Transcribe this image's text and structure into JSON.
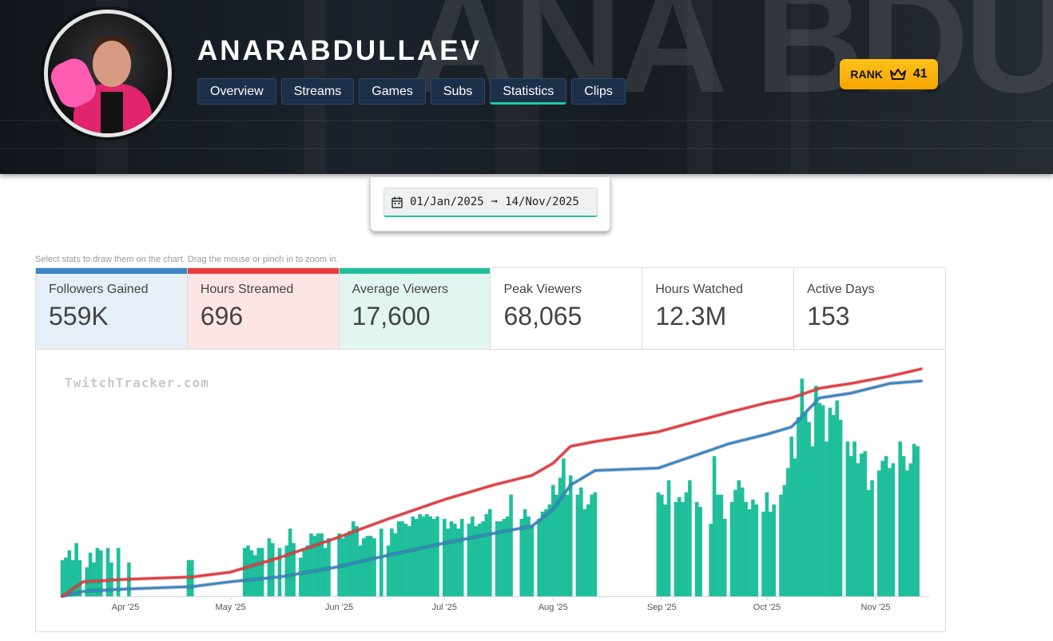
{
  "header": {
    "streamer_name": "ANARABDULLAEV",
    "tabs": [
      {
        "label": "Overview",
        "active": false
      },
      {
        "label": "Streams",
        "active": false
      },
      {
        "label": "Games",
        "active": false
      },
      {
        "label": "Subs",
        "active": false
      },
      {
        "label": "Statistics",
        "active": true
      },
      {
        "label": "Clips",
        "active": false
      }
    ],
    "rank": {
      "label": "RANK",
      "icon": "crown-icon",
      "value": "41"
    },
    "background_text": "ANA BDU"
  },
  "date_range": {
    "icon": "calendar-icon",
    "start": "01/Jan/2025",
    "arrow": "➞",
    "end": "14/Nov/2025"
  },
  "hint": "Select stats to draw them on the chart. Drag the mouse or pinch in to zoom in.",
  "stats": [
    {
      "label": "Followers Gained",
      "value": "559K",
      "selected": true,
      "color": "#3b86c6",
      "bg": "#e6eff7"
    },
    {
      "label": "Hours Streamed",
      "value": "696",
      "selected": true,
      "color": "#ea3b3f",
      "bg": "#fde5e5"
    },
    {
      "label": "Average Viewers",
      "value": "17,600",
      "selected": true,
      "color": "#1fbf9c",
      "bg": "#e1f6f1"
    },
    {
      "label": "Peak Viewers",
      "value": "68,065",
      "selected": false,
      "color": "",
      "bg": "#ffffff"
    },
    {
      "label": "Hours Watched",
      "value": "12.3M",
      "selected": false,
      "color": "",
      "bg": "#ffffff"
    },
    {
      "label": "Active Days",
      "value": "153",
      "selected": false,
      "color": "",
      "bg": "#ffffff"
    }
  ],
  "watermark": "TwitchTracker.com",
  "chart_data": {
    "type": "bar",
    "x_axis_type": "date",
    "x_range": [
      "2025-03-14",
      "2025-11-14"
    ],
    "x_ticks": [
      {
        "label": "Apr '25",
        "date": "2025-04-01"
      },
      {
        "label": "May '25",
        "date": "2025-05-01"
      },
      {
        "label": "Jun '25",
        "date": "2025-06-01"
      },
      {
        "label": "Jul '25",
        "date": "2025-07-01"
      },
      {
        "label": "Aug '25",
        "date": "2025-08-01"
      },
      {
        "label": "Sep '25",
        "date": "2025-09-01"
      },
      {
        "label": "Oct '25",
        "date": "2025-10-01"
      },
      {
        "label": "Nov '25",
        "date": "2025-11-01"
      }
    ],
    "y_axis": "hidden",
    "grid": false,
    "legend": "none",
    "series": [
      {
        "type": "bar",
        "color": "#1fbf9c",
        "values_note": "relative height 0-1",
        "points": [
          [
            "2025-03-14",
            0.15
          ],
          [
            "2025-03-15",
            0.16
          ],
          [
            "2025-03-16",
            0.19
          ],
          [
            "2025-03-17",
            0.15
          ],
          [
            "2025-03-18",
            0.22
          ],
          [
            "2025-03-19",
            0.15
          ],
          [
            "2025-03-21",
            0.12
          ],
          [
            "2025-03-22",
            0.18
          ],
          [
            "2025-03-23",
            0.14
          ],
          [
            "2025-03-24",
            0.2
          ],
          [
            "2025-03-25",
            0.19
          ],
          [
            "2025-03-27",
            0.2
          ],
          [
            "2025-03-28",
            0.14
          ],
          [
            "2025-03-30",
            0.2
          ],
          [
            "2025-04-02",
            0.14
          ],
          [
            "2025-04-19",
            0.15
          ],
          [
            "2025-04-20",
            0.15
          ],
          [
            "2025-05-05",
            0.2
          ],
          [
            "2025-05-06",
            0.21
          ],
          [
            "2025-05-07",
            0.19
          ],
          [
            "2025-05-08",
            0.17
          ],
          [
            "2025-05-09",
            0.2
          ],
          [
            "2025-05-10",
            0.2
          ],
          [
            "2025-05-12",
            0.24
          ],
          [
            "2025-05-13",
            0.22
          ],
          [
            "2025-05-15",
            0.2
          ],
          [
            "2025-05-17",
            0.21
          ],
          [
            "2025-05-18",
            0.28
          ],
          [
            "2025-05-19",
            0.22
          ],
          [
            "2025-05-21",
            0.16
          ],
          [
            "2025-05-22",
            0.19
          ],
          [
            "2025-05-23",
            0.21
          ],
          [
            "2025-05-24",
            0.26
          ],
          [
            "2025-05-25",
            0.25
          ],
          [
            "2025-05-26",
            0.26
          ],
          [
            "2025-05-27",
            0.26
          ],
          [
            "2025-05-28",
            0.2
          ],
          [
            "2025-05-29",
            0.24
          ],
          [
            "2025-06-01",
            0.26
          ],
          [
            "2025-06-02",
            0.24
          ],
          [
            "2025-06-03",
            0.26
          ],
          [
            "2025-06-04",
            0.27
          ],
          [
            "2025-06-05",
            0.31
          ],
          [
            "2025-06-06",
            0.29
          ],
          [
            "2025-06-07",
            0.21
          ],
          [
            "2025-06-08",
            0.24
          ],
          [
            "2025-06-09",
            0.25
          ],
          [
            "2025-06-10",
            0.25
          ],
          [
            "2025-06-11",
            0.24
          ],
          [
            "2025-06-13",
            0.28
          ],
          [
            "2025-06-15",
            0.21
          ],
          [
            "2025-06-16",
            0.28
          ],
          [
            "2025-06-17",
            0.26
          ],
          [
            "2025-06-18",
            0.31
          ],
          [
            "2025-06-19",
            0.31
          ],
          [
            "2025-06-20",
            0.3
          ],
          [
            "2025-06-21",
            0.29
          ],
          [
            "2025-06-22",
            0.33
          ],
          [
            "2025-06-23",
            0.32
          ],
          [
            "2025-06-24",
            0.34
          ],
          [
            "2025-06-25",
            0.33
          ],
          [
            "2025-06-26",
            0.34
          ],
          [
            "2025-06-27",
            0.33
          ],
          [
            "2025-06-28",
            0.32
          ],
          [
            "2025-06-29",
            0.33
          ],
          [
            "2025-07-01",
            0.32
          ],
          [
            "2025-07-02",
            0.28
          ],
          [
            "2025-07-03",
            0.31
          ],
          [
            "2025-07-04",
            0.3
          ],
          [
            "2025-07-05",
            0.28
          ],
          [
            "2025-07-06",
            0.32
          ],
          [
            "2025-07-08",
            0.3
          ],
          [
            "2025-07-09",
            0.33
          ],
          [
            "2025-07-10",
            0.29
          ],
          [
            "2025-07-11",
            0.3
          ],
          [
            "2025-07-12",
            0.31
          ],
          [
            "2025-07-13",
            0.34
          ],
          [
            "2025-07-14",
            0.36
          ],
          [
            "2025-07-16",
            0.31
          ],
          [
            "2025-07-17",
            0.31
          ],
          [
            "2025-07-18",
            0.32
          ],
          [
            "2025-07-19",
            0.33
          ],
          [
            "2025-07-20",
            0.42
          ],
          [
            "2025-07-23",
            0.32
          ],
          [
            "2025-07-24",
            0.36
          ],
          [
            "2025-07-25",
            0.33
          ],
          [
            "2025-07-26",
            0.29
          ],
          [
            "2025-07-28",
            0.32
          ],
          [
            "2025-07-29",
            0.35
          ],
          [
            "2025-07-30",
            0.36
          ],
          [
            "2025-07-31",
            0.38
          ],
          [
            "2025-08-01",
            0.46
          ],
          [
            "2025-08-02",
            0.42
          ],
          [
            "2025-08-03",
            0.49
          ],
          [
            "2025-08-04",
            0.57
          ],
          [
            "2025-08-05",
            0.42
          ],
          [
            "2025-08-06",
            0.5
          ],
          [
            "2025-08-08",
            0.42
          ],
          [
            "2025-08-09",
            0.45
          ],
          [
            "2025-08-10",
            0.36
          ],
          [
            "2025-08-11",
            0.38
          ],
          [
            "2025-08-12",
            0.42
          ],
          [
            "2025-08-13",
            0.43
          ],
          [
            "2025-08-31",
            0.43
          ],
          [
            "2025-09-01",
            0.42
          ],
          [
            "2025-09-02",
            0.38
          ],
          [
            "2025-09-03",
            0.48
          ],
          [
            "2025-09-05",
            0.39
          ],
          [
            "2025-09-06",
            0.41
          ],
          [
            "2025-09-07",
            0.39
          ],
          [
            "2025-09-08",
            0.43
          ],
          [
            "2025-09-09",
            0.48
          ],
          [
            "2025-09-11",
            0.39
          ],
          [
            "2025-09-12",
            0.37
          ],
          [
            "2025-09-15",
            0.3
          ],
          [
            "2025-09-16",
            0.58
          ],
          [
            "2025-09-17",
            0.42
          ],
          [
            "2025-09-18",
            0.42
          ],
          [
            "2025-09-19",
            0.32
          ],
          [
            "2025-09-21",
            0.39
          ],
          [
            "2025-09-22",
            0.44
          ],
          [
            "2025-09-23",
            0.48
          ],
          [
            "2025-09-24",
            0.45
          ],
          [
            "2025-09-25",
            0.39
          ],
          [
            "2025-09-26",
            0.36
          ],
          [
            "2025-09-27",
            0.4
          ],
          [
            "2025-09-28",
            0.38
          ],
          [
            "2025-09-30",
            0.35
          ],
          [
            "2025-10-01",
            0.43
          ],
          [
            "2025-10-02",
            0.35
          ],
          [
            "2025-10-03",
            0.38
          ],
          [
            "2025-10-05",
            0.42
          ],
          [
            "2025-10-06",
            0.46
          ],
          [
            "2025-10-07",
            0.53
          ],
          [
            "2025-10-08",
            0.66
          ],
          [
            "2025-10-09",
            0.57
          ],
          [
            "2025-10-10",
            0.74
          ],
          [
            "2025-10-11",
            0.9
          ],
          [
            "2025-10-12",
            0.76
          ],
          [
            "2025-10-13",
            0.72
          ],
          [
            "2025-10-14",
            0.62
          ],
          [
            "2025-10-15",
            0.87
          ],
          [
            "2025-10-16",
            0.8
          ],
          [
            "2025-10-17",
            0.79
          ],
          [
            "2025-10-18",
            0.64
          ],
          [
            "2025-10-19",
            0.78
          ],
          [
            "2025-10-20",
            0.75
          ],
          [
            "2025-10-21",
            0.81
          ],
          [
            "2025-10-22",
            0.73
          ],
          [
            "2025-10-24",
            0.64
          ],
          [
            "2025-10-25",
            0.58
          ],
          [
            "2025-10-26",
            0.64
          ],
          [
            "2025-10-27",
            0.55
          ],
          [
            "2025-10-28",
            0.59
          ],
          [
            "2025-10-29",
            0.6
          ],
          [
            "2025-10-30",
            0.44
          ],
          [
            "2025-10-31",
            0.48
          ],
          [
            "2025-11-02",
            0.52
          ],
          [
            "2025-11-03",
            0.56
          ],
          [
            "2025-11-04",
            0.58
          ],
          [
            "2025-11-05",
            0.53
          ],
          [
            "2025-11-06",
            0.55
          ],
          [
            "2025-11-08",
            0.64
          ],
          [
            "2025-11-09",
            0.58
          ],
          [
            "2025-11-10",
            0.52
          ],
          [
            "2025-11-11",
            0.55
          ],
          [
            "2025-11-12",
            0.63
          ],
          [
            "2025-11-13",
            0.62
          ]
        ]
      },
      {
        "type": "line",
        "color": "#3b86c6",
        "values_note": "relative height 0-1 (cumulative)",
        "points": [
          [
            "2025-03-14",
            0.0
          ],
          [
            "2025-03-20",
            0.02
          ],
          [
            "2025-04-01",
            0.03
          ],
          [
            "2025-04-20",
            0.04
          ],
          [
            "2025-05-01",
            0.06
          ],
          [
            "2025-05-15",
            0.08
          ],
          [
            "2025-05-31",
            0.12
          ],
          [
            "2025-06-15",
            0.17
          ],
          [
            "2025-07-01",
            0.22
          ],
          [
            "2025-07-15",
            0.26
          ],
          [
            "2025-07-26",
            0.29
          ],
          [
            "2025-08-01",
            0.36
          ],
          [
            "2025-08-06",
            0.46
          ],
          [
            "2025-08-13",
            0.52
          ],
          [
            "2025-08-31",
            0.53
          ],
          [
            "2025-09-10",
            0.58
          ],
          [
            "2025-09-20",
            0.63
          ],
          [
            "2025-10-01",
            0.67
          ],
          [
            "2025-10-08",
            0.7
          ],
          [
            "2025-10-16",
            0.82
          ],
          [
            "2025-10-25",
            0.84
          ],
          [
            "2025-11-05",
            0.88
          ],
          [
            "2025-11-14",
            0.89
          ]
        ]
      },
      {
        "type": "line",
        "color": "#ea3b3f",
        "values_note": "relative height 0-1 (cumulative)",
        "points": [
          [
            "2025-03-14",
            0.0
          ],
          [
            "2025-03-20",
            0.06
          ],
          [
            "2025-04-01",
            0.07
          ],
          [
            "2025-04-20",
            0.08
          ],
          [
            "2025-05-01",
            0.1
          ],
          [
            "2025-05-15",
            0.16
          ],
          [
            "2025-05-31",
            0.24
          ],
          [
            "2025-06-15",
            0.32
          ],
          [
            "2025-07-01",
            0.4
          ],
          [
            "2025-07-15",
            0.46
          ],
          [
            "2025-07-26",
            0.5
          ],
          [
            "2025-08-01",
            0.55
          ],
          [
            "2025-08-06",
            0.62
          ],
          [
            "2025-08-13",
            0.64
          ],
          [
            "2025-08-31",
            0.68
          ],
          [
            "2025-09-10",
            0.72
          ],
          [
            "2025-09-20",
            0.76
          ],
          [
            "2025-10-01",
            0.8
          ],
          [
            "2025-10-08",
            0.82
          ],
          [
            "2025-10-16",
            0.86
          ],
          [
            "2025-10-25",
            0.88
          ],
          [
            "2025-11-05",
            0.91
          ],
          [
            "2025-11-14",
            0.94
          ]
        ]
      }
    ]
  }
}
